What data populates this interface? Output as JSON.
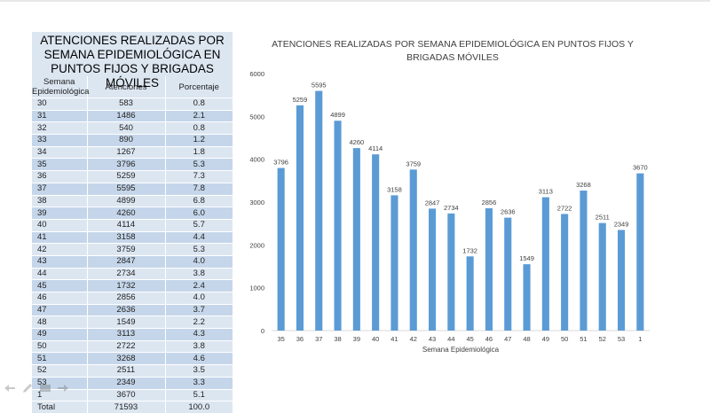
{
  "table": {
    "title": "ATENCIONES REALIZADAS POR SEMANA EPIDEMIOLÓGICA EN PUNTOS FIJOS Y BRIGADAS MÓVILES",
    "headers": [
      "Semana Epidemiológica",
      "Atenciones",
      "Porcentaje"
    ],
    "rows": [
      [
        "30",
        "583",
        "0.8"
      ],
      [
        "31",
        "1486",
        "2.1"
      ],
      [
        "32",
        "540",
        "0.8"
      ],
      [
        "33",
        "890",
        "1.2"
      ],
      [
        "34",
        "1267",
        "1.8"
      ],
      [
        "35",
        "3796",
        "5.3"
      ],
      [
        "36",
        "5259",
        "7.3"
      ],
      [
        "37",
        "5595",
        "7.8"
      ],
      [
        "38",
        "4899",
        "6.8"
      ],
      [
        "39",
        "4260",
        "6.0"
      ],
      [
        "40",
        "4114",
        "5.7"
      ],
      [
        "41",
        "3158",
        "4.4"
      ],
      [
        "42",
        "3759",
        "5.3"
      ],
      [
        "43",
        "2847",
        "4.0"
      ],
      [
        "44",
        "2734",
        "3.8"
      ],
      [
        "45",
        "1732",
        "2.4"
      ],
      [
        "46",
        "2856",
        "4.0"
      ],
      [
        "47",
        "2636",
        "3.7"
      ],
      [
        "48",
        "1549",
        "2.2"
      ],
      [
        "49",
        "3113",
        "4.3"
      ],
      [
        "50",
        "2722",
        "3.8"
      ],
      [
        "51",
        "3268",
        "4.6"
      ],
      [
        "52",
        "2511",
        "3.5"
      ],
      [
        "53",
        "2349",
        "3.3"
      ],
      [
        "1",
        "3670",
        "5.1"
      ]
    ],
    "total": [
      "Total",
      "71593",
      "100.0"
    ]
  },
  "chart_data": {
    "type": "bar",
    "title": "ATENCIONES REALIZADAS POR SEMANA EPIDEMIOLÓGICA EN PUNTOS FIJOS Y BRIGADAS MÓVILES",
    "xlabel": "Semana Epidemiológica",
    "ylabel": "",
    "categories": [
      "35",
      "36",
      "37",
      "38",
      "39",
      "40",
      "41",
      "42",
      "43",
      "44",
      "45",
      "46",
      "47",
      "48",
      "49",
      "50",
      "51",
      "52",
      "53",
      "1"
    ],
    "values": [
      3796,
      5259,
      5595,
      4899,
      4260,
      4114,
      3158,
      3759,
      2847,
      2734,
      1732,
      2856,
      2636,
      1549,
      3113,
      2722,
      3268,
      2511,
      2349,
      3670
    ],
    "ylim": [
      0,
      6000
    ],
    "yticks": [
      "0",
      "1000",
      "2000",
      "3000",
      "4000",
      "5000",
      "6000"
    ],
    "grid": false,
    "data_labels": true,
    "bar_color": "#5b9bd5",
    "axis_color": "#d9d9d9",
    "label_color": "#404040"
  },
  "toolbar": {
    "icons": [
      "back-arrow-icon",
      "pen-icon",
      "slides-icon",
      "forward-arrow-icon"
    ]
  }
}
